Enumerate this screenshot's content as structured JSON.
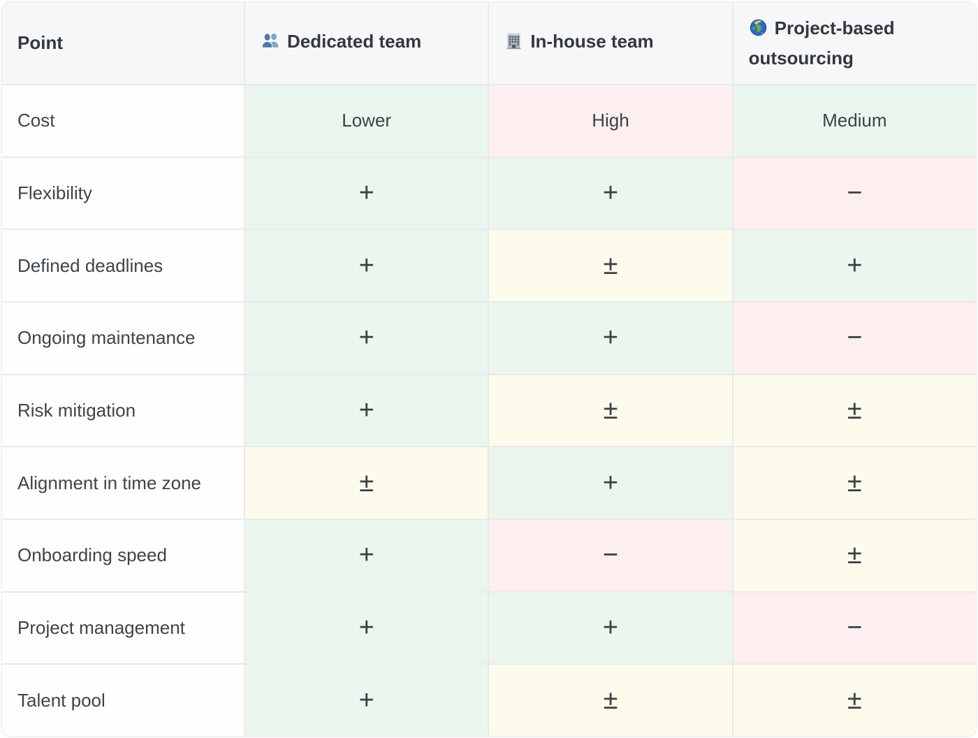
{
  "table": {
    "header": {
      "point": "Point",
      "columns": [
        {
          "label": "Dedicated team",
          "icon": "busts-in-silhouette-icon"
        },
        {
          "label": "In-house team",
          "icon": "office-building-icon"
        },
        {
          "label": "Project-based outsourcing",
          "icon": "globe-europe-africa-icon"
        }
      ]
    },
    "rows": [
      {
        "label": "Cost",
        "cells": [
          {
            "text": "Lower",
            "tone": "positive"
          },
          {
            "text": "High",
            "tone": "negative"
          },
          {
            "text": "Medium",
            "tone": "positive"
          }
        ]
      },
      {
        "label": "Flexibility",
        "cells": [
          {
            "text": "+",
            "tone": "positive"
          },
          {
            "text": "+",
            "tone": "positive"
          },
          {
            "text": "−",
            "tone": "negative"
          }
        ]
      },
      {
        "label": "Defined deadlines",
        "cells": [
          {
            "text": "+",
            "tone": "positive"
          },
          {
            "text": "±",
            "tone": "mixed"
          },
          {
            "text": "+",
            "tone": "positive"
          }
        ]
      },
      {
        "label": "Ongoing maintenance",
        "cells": [
          {
            "text": "+",
            "tone": "positive"
          },
          {
            "text": "+",
            "tone": "positive"
          },
          {
            "text": "−",
            "tone": "negative"
          }
        ]
      },
      {
        "label": "Risk mitigation",
        "cells": [
          {
            "text": "+",
            "tone": "positive"
          },
          {
            "text": "±",
            "tone": "mixed"
          },
          {
            "text": "±",
            "tone": "mixed"
          }
        ]
      },
      {
        "label": "Alignment in time zone",
        "cells": [
          {
            "text": "±",
            "tone": "mixed"
          },
          {
            "text": "+",
            "tone": "positive"
          },
          {
            "text": "±",
            "tone": "mixed"
          }
        ]
      },
      {
        "label": "Onboarding speed",
        "cells": [
          {
            "text": "+",
            "tone": "positive"
          },
          {
            "text": "−",
            "tone": "negative"
          },
          {
            "text": "±",
            "tone": "mixed"
          }
        ]
      },
      {
        "label": "Project management",
        "cells": [
          {
            "text": "+",
            "tone": "positive"
          },
          {
            "text": "+",
            "tone": "positive"
          },
          {
            "text": "−",
            "tone": "negative"
          }
        ]
      },
      {
        "label": "Talent pool",
        "cells": [
          {
            "text": "+",
            "tone": "positive"
          },
          {
            "text": "±",
            "tone": "mixed"
          },
          {
            "text": "±",
            "tone": "mixed"
          }
        ]
      }
    ],
    "tone_colors": {
      "positive": "#eaf6ee",
      "negative": "#fdeef0",
      "mixed": "#fdfbec"
    },
    "ui_colors": {
      "header_bg": "#f6f7f8",
      "label_bg": "#fdfefd",
      "gridline": "#e8eaeb",
      "header_text": "#34383d",
      "body_text": "#3f444a"
    }
  }
}
